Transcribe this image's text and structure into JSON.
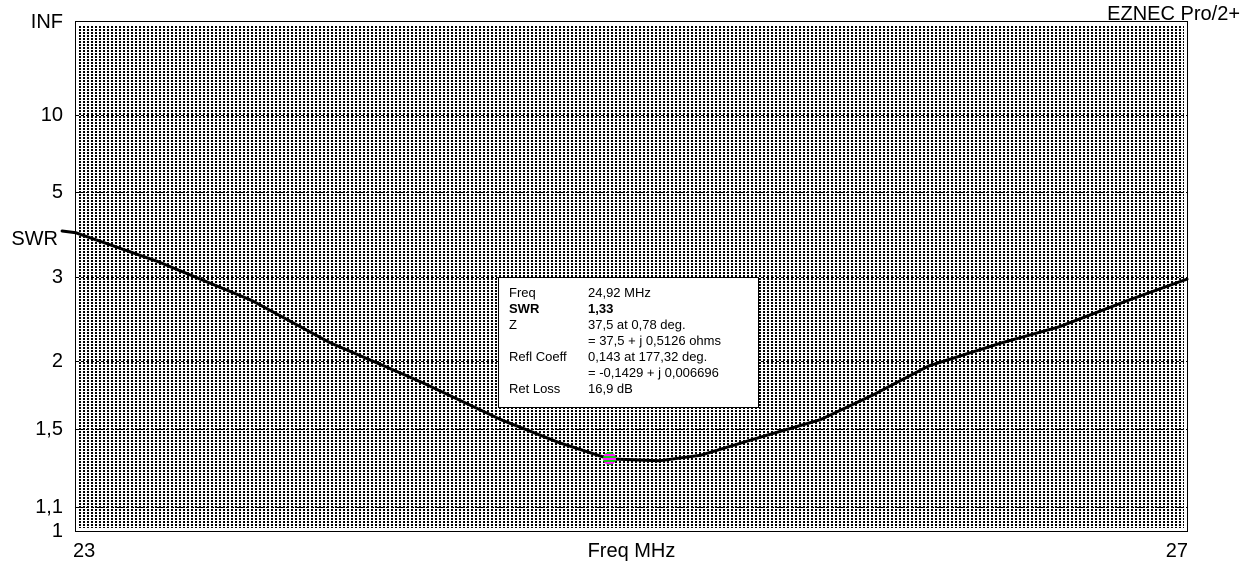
{
  "app_title": "EZNEC Pro/2+",
  "colors": {
    "background": "#ffffff",
    "curve": "#000000",
    "marker_green": "#13c913",
    "marker_magenta": "#ff1aff"
  },
  "chart_data": {
    "type": "line",
    "title": "",
    "xlabel": "Freq MHz",
    "ylabel": "SWR",
    "grid": "horizontal-dashed",
    "x_axis": {
      "min_mhz": 23,
      "max_mhz": 27,
      "tick_labels": [
        "23",
        "27"
      ]
    },
    "y_axis": {
      "scale": "swr-linear-in-reflection-coefficient-magnitude",
      "range": [
        "1",
        "INF"
      ],
      "ticks": [
        {
          "label": "INF",
          "swr": null,
          "grid": false
        },
        {
          "label": "10",
          "swr": 10,
          "grid": true
        },
        {
          "label": "5",
          "swr": 5,
          "grid": true
        },
        {
          "label": "3",
          "swr": 3,
          "grid": true
        },
        {
          "label": "2",
          "swr": 2,
          "grid": true
        },
        {
          "label": "1,5",
          "swr": 1.5,
          "grid": true
        },
        {
          "label": "1,1",
          "swr": 1.1,
          "grid": true
        },
        {
          "label": "1",
          "swr": 1,
          "grid": false
        }
      ]
    },
    "series": [
      {
        "name": "SWR vs Frequency",
        "points": [
          {
            "mhz": 22.95,
            "swr": 3.87
          },
          {
            "mhz": 23.0,
            "swr": 3.83
          },
          {
            "mhz": 23.3,
            "swr": 3.24
          },
          {
            "mhz": 23.63,
            "swr": 2.66
          },
          {
            "mhz": 23.91,
            "swr": 2.18
          },
          {
            "mhz": 24.24,
            "swr": 1.83
          },
          {
            "mhz": 24.53,
            "swr": 1.56
          },
          {
            "mhz": 24.74,
            "swr": 1.42
          },
          {
            "mhz": 24.92,
            "swr": 1.33
          },
          {
            "mhz": 25.1,
            "swr": 1.32
          },
          {
            "mhz": 25.25,
            "swr": 1.35
          },
          {
            "mhz": 25.46,
            "swr": 1.45
          },
          {
            "mhz": 25.68,
            "swr": 1.56
          },
          {
            "mhz": 25.87,
            "swr": 1.73
          },
          {
            "mhz": 26.07,
            "swr": 1.96
          },
          {
            "mhz": 26.33,
            "swr": 2.17
          },
          {
            "mhz": 26.54,
            "swr": 2.34
          },
          {
            "mhz": 26.79,
            "swr": 2.66
          },
          {
            "mhz": 27.0,
            "swr": 2.96
          }
        ]
      }
    ],
    "cursor_point": {
      "mhz": 24.92,
      "swr": 1.33
    }
  },
  "cursor_readout": {
    "rows": [
      {
        "label": "Freq",
        "value": "24,92 MHz",
        "bold": false
      },
      {
        "label": "SWR",
        "value": "1,33",
        "bold": true
      },
      {
        "label": "Z",
        "value": "37,5 at 0,78 deg.",
        "bold": false
      },
      {
        "label": "",
        "value": "= 37,5 + j 0,5126 ohms",
        "bold": false
      },
      {
        "label": "Refl Coeff",
        "value": "0,143 at 177,32 deg.",
        "bold": false
      },
      {
        "label": "",
        "value": "= -0,1429 + j 0,006696",
        "bold": false
      },
      {
        "label": "Ret Loss",
        "value": "16,9 dB",
        "bold": false
      }
    ]
  }
}
